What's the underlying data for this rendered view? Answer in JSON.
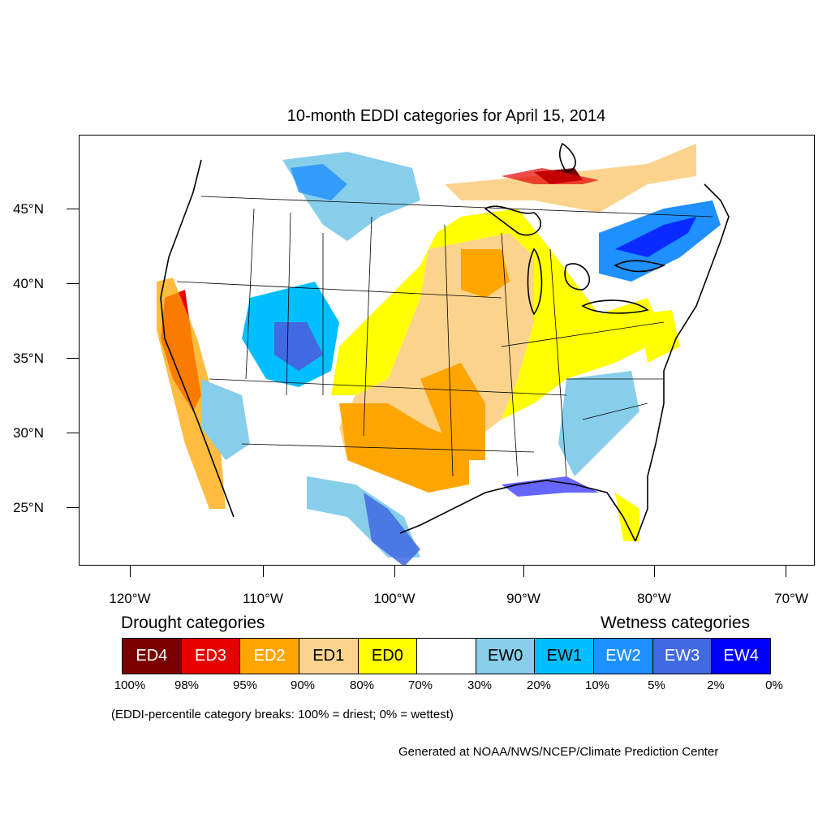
{
  "title": "10-month EDDI categories for April 15, 2014",
  "lat_labels": [
    "45°N",
    "40°N",
    "35°N",
    "30°N",
    "25°N"
  ],
  "lon_labels": [
    "120°W",
    "110°W",
    "100°W",
    "90°W",
    "80°W",
    "70°W"
  ],
  "drought_heading": "Drought categories",
  "wetness_heading": "Wetness categories",
  "legend": [
    {
      "label": "ED4",
      "color": "#7a0000",
      "text_color": "#ffffff"
    },
    {
      "label": "ED3",
      "color": "#e60000",
      "text_color": "#ffffff"
    },
    {
      "label": "ED2",
      "color": "#ffa500",
      "text_color": "#ffffff"
    },
    {
      "label": "ED1",
      "color": "#fcd38d",
      "text_color": "#000000"
    },
    {
      "label": "ED0",
      "color": "#ffff00",
      "text_color": "#000000"
    },
    {
      "label": "",
      "color": "#ffffff",
      "text_color": "#000000"
    },
    {
      "label": "EW0",
      "color": "#87ceeb",
      "text_color": "#000000"
    },
    {
      "label": "EW1",
      "color": "#00bfff",
      "text_color": "#000000"
    },
    {
      "label": "EW2",
      "color": "#1e90ff",
      "text_color": "#ffffff"
    },
    {
      "label": "EW3",
      "color": "#4169e1",
      "text_color": "#ffffff"
    },
    {
      "label": "EW4",
      "color": "#0000ff",
      "text_color": "#ffffff"
    }
  ],
  "breaks": [
    "100%",
    "98%",
    "95%",
    "90%",
    "80%",
    "70%",
    "30%",
    "20%",
    "10%",
    "5%",
    "2%",
    "0%"
  ],
  "note": "(EDDI-percentile category breaks: 100% = driest; 0% = wettest)",
  "credit": "Generated at NOAA/NWS/NCEP/Climate Prediction Center",
  "colors": {
    "ED4": "#7a0000",
    "ED3": "#e60000",
    "ED2": "#ffa500",
    "ED1": "#fcd38d",
    "ED0": "#ffff00",
    "EW0": "#87ceeb",
    "EW1": "#00bfff",
    "EW2": "#1e90ff",
    "EW3": "#4169e1",
    "EW4": "#0000ff"
  }
}
